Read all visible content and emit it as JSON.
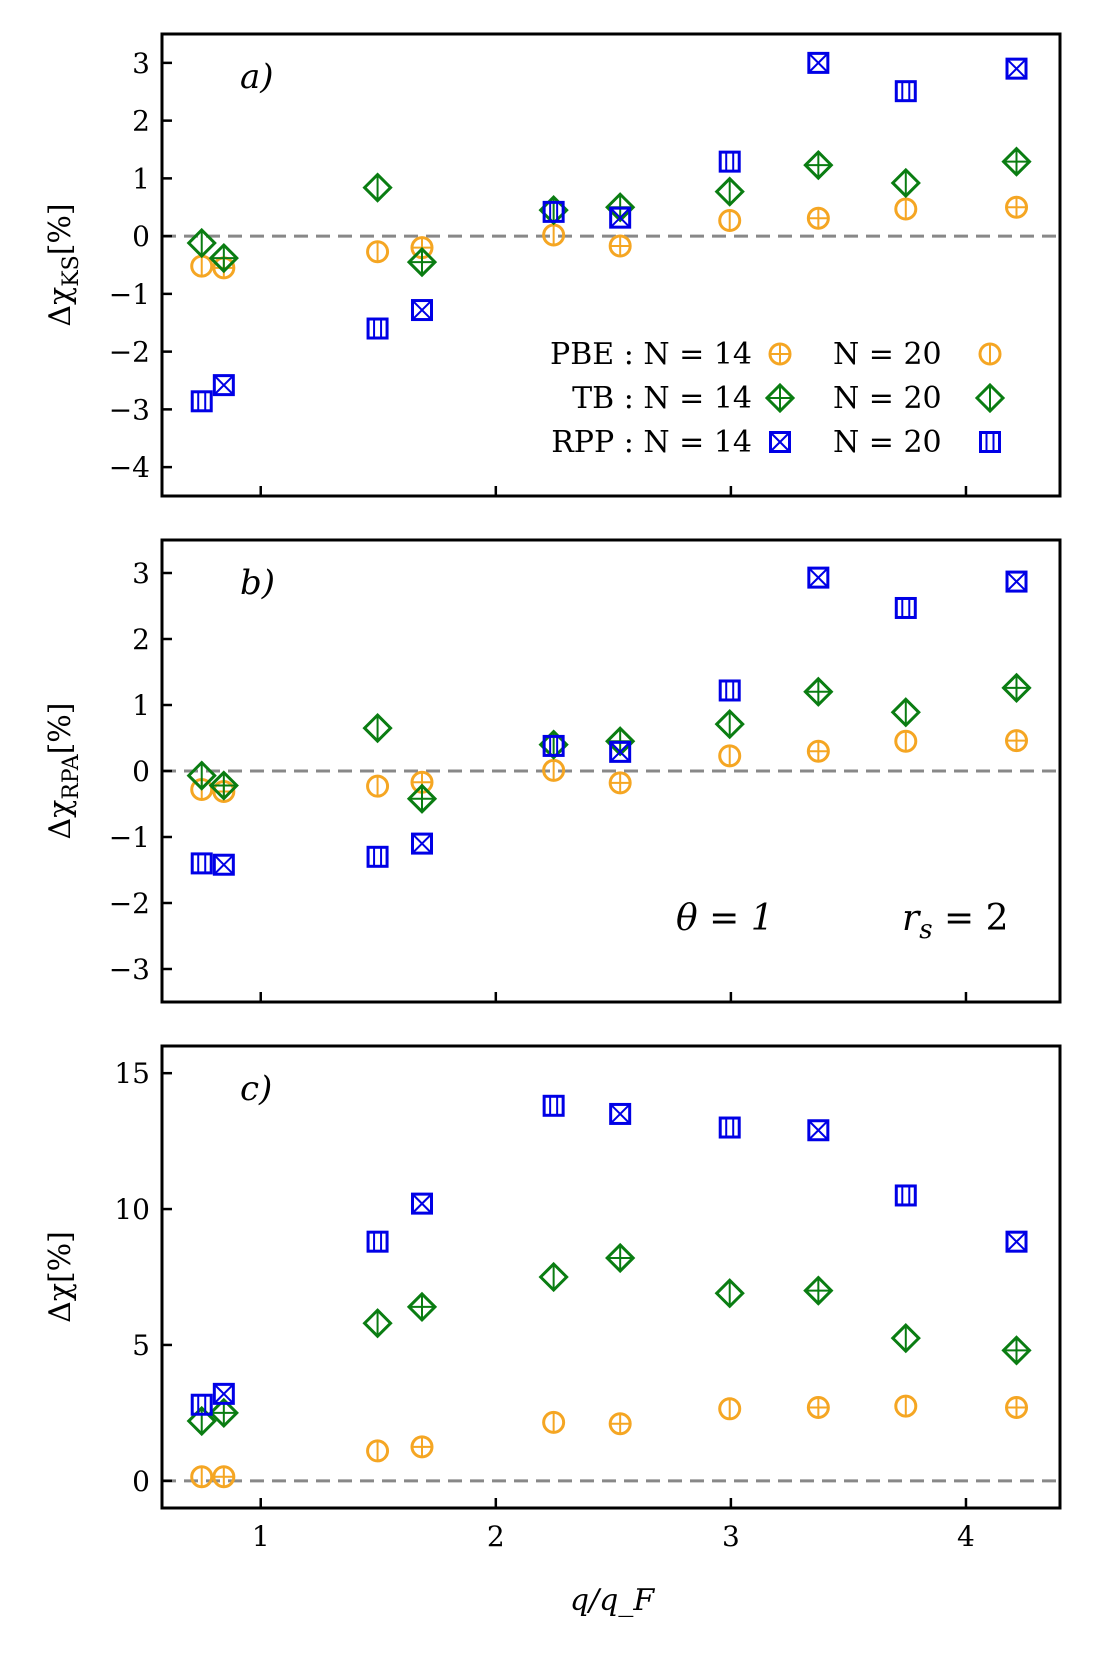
{
  "chart_data": {
    "type": "scatter",
    "xlabel": "q/q_F",
    "xlim": [
      0.58,
      4.4
    ],
    "xticks": [
      1,
      2,
      3,
      4
    ],
    "x_n14": [
      0.843,
      1.686,
      2.529,
      3.372,
      4.215
    ],
    "x_n20": [
      0.749,
      1.497,
      2.246,
      2.995,
      3.744
    ],
    "colors": {
      "PBE": "#f5a623",
      "TB": "#0a7d12",
      "RPP": "#0000e6"
    },
    "legend": {
      "rows": [
        {
          "method": "PBE",
          "label_left": "PBE : N = 14",
          "label_right": "N = 20"
        },
        {
          "method": "TB",
          "label_left": "TB : N = 14",
          "label_right": "N = 20"
        },
        {
          "method": "RPP",
          "label_left": "RPP : N = 14",
          "label_right": "N = 20"
        }
      ]
    },
    "panels": [
      {
        "id": "a",
        "label": "a)",
        "ylabel": "Δχ_KS[%]",
        "ylabel_main": "Δχ",
        "ylabel_sub": "KS",
        "ylabel_tail": "[%]",
        "ylim": [
          -4.5,
          3.5
        ],
        "yticks": [
          -4,
          -3,
          -2,
          -1,
          0,
          1,
          2,
          3
        ],
        "ytick_labels": [
          "−4",
          "−3",
          "−2",
          "−1",
          "0",
          "1",
          "2",
          "3"
        ],
        "series": [
          {
            "method": "PBE",
            "N": 14,
            "values": [
              -0.55,
              -0.2,
              -0.17,
              0.31,
              0.5
            ]
          },
          {
            "method": "PBE",
            "N": 20,
            "values": [
              -0.52,
              -0.27,
              0.02,
              0.27,
              0.47
            ]
          },
          {
            "method": "TB",
            "N": 14,
            "values": [
              -0.38,
              -0.45,
              0.5,
              1.23,
              1.29
            ]
          },
          {
            "method": "TB",
            "N": 20,
            "values": [
              -0.12,
              0.84,
              0.45,
              0.77,
              0.92
            ]
          },
          {
            "method": "RPP",
            "N": 14,
            "values": [
              -2.58,
              -1.28,
              0.32,
              3.0,
              2.9
            ]
          },
          {
            "method": "RPP",
            "N": 20,
            "values": [
              -2.86,
              -1.6,
              0.42,
              1.29,
              2.51
            ]
          }
        ]
      },
      {
        "id": "b",
        "label": "b)",
        "ylabel": "Δχ_RPA[%]",
        "ylabel_main": "Δχ",
        "ylabel_sub": "RPA",
        "ylabel_tail": "[%]",
        "ylim": [
          -3.5,
          3.5
        ],
        "yticks": [
          -3,
          -2,
          -1,
          0,
          1,
          2,
          3
        ],
        "ytick_labels": [
          "−3",
          "−2",
          "−1",
          "0",
          "1",
          "2",
          "3"
        ],
        "annotations": [
          "θ = 1",
          "r_s = 2"
        ],
        "annotation_theta": "θ = 1",
        "annotation_rs_main": "r",
        "annotation_rs_sub": "s",
        "annotation_rs_tail": " = 2",
        "series": [
          {
            "method": "PBE",
            "N": 14,
            "values": [
              -0.31,
              -0.17,
              -0.18,
              0.3,
              0.46
            ]
          },
          {
            "method": "PBE",
            "N": 20,
            "values": [
              -0.28,
              -0.23,
              0.01,
              0.23,
              0.45
            ]
          },
          {
            "method": "TB",
            "N": 14,
            "values": [
              -0.22,
              -0.42,
              0.45,
              1.2,
              1.26
            ]
          },
          {
            "method": "TB",
            "N": 20,
            "values": [
              -0.07,
              0.65,
              0.4,
              0.71,
              0.89
            ]
          },
          {
            "method": "RPP",
            "N": 14,
            "values": [
              -1.42,
              -1.1,
              0.29,
              2.93,
              2.87
            ]
          },
          {
            "method": "RPP",
            "N": 20,
            "values": [
              -1.4,
              -1.3,
              0.38,
              1.22,
              2.47
            ]
          }
        ]
      },
      {
        "id": "c",
        "label": "c)",
        "ylabel": "Δχ[%]",
        "ylabel_main": "Δχ",
        "ylabel_sub": "",
        "ylabel_tail": "[%]",
        "ylim": [
          -1.0,
          16.0
        ],
        "yticks": [
          0,
          5,
          10,
          15
        ],
        "ytick_labels": [
          "0",
          "5",
          "10",
          "15"
        ],
        "series": [
          {
            "method": "PBE",
            "N": 14,
            "values": [
              0.15,
              1.25,
              2.1,
              2.7,
              2.7
            ]
          },
          {
            "method": "PBE",
            "N": 20,
            "values": [
              0.15,
              1.1,
              2.15,
              2.65,
              2.75
            ]
          },
          {
            "method": "TB",
            "N": 14,
            "values": [
              2.5,
              6.4,
              8.2,
              7.0,
              4.8
            ]
          },
          {
            "method": "TB",
            "N": 20,
            "values": [
              2.2,
              5.8,
              7.5,
              6.9,
              5.25
            ]
          },
          {
            "method": "RPP",
            "N": 14,
            "values": [
              3.2,
              10.2,
              13.5,
              12.9,
              8.8
            ]
          },
          {
            "method": "RPP",
            "N": 20,
            "values": [
              2.8,
              8.8,
              13.8,
              13.0,
              10.5
            ]
          }
        ]
      }
    ]
  }
}
